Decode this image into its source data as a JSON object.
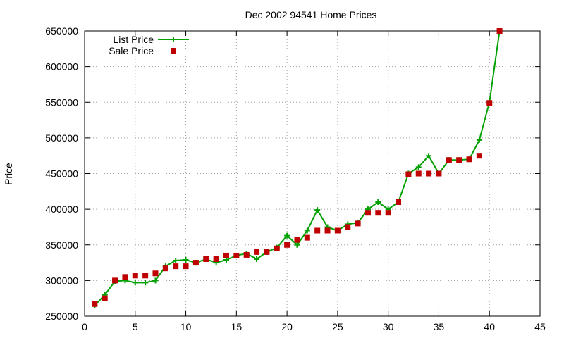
{
  "chart_data": {
    "type": "line",
    "title": "Dec 2002 94541 Home Prices",
    "xlabel": "",
    "ylabel": "Price",
    "xlim": [
      0,
      45
    ],
    "ylim": [
      250000,
      650000
    ],
    "xticks": [
      "0",
      "5",
      "10",
      "15",
      "20",
      "25",
      "30",
      "35",
      "40",
      "45"
    ],
    "yticks": [
      "250000",
      "300000",
      "350000",
      "400000",
      "450000",
      "500000",
      "550000",
      "600000",
      "650000"
    ],
    "grid": true,
    "legend_position": "top-left",
    "series": [
      {
        "name": "List Price",
        "style": "line-with-plus-markers",
        "color": "#00a000",
        "x": [
          1,
          2,
          3,
          4,
          5,
          6,
          7,
          8,
          9,
          10,
          11,
          12,
          13,
          14,
          15,
          16,
          17,
          18,
          19,
          20,
          21,
          22,
          23,
          24,
          25,
          26,
          27,
          28,
          29,
          30,
          31,
          32,
          33,
          34,
          35,
          36,
          37,
          38,
          39,
          40,
          41
        ],
        "y": [
          265000,
          280000,
          299000,
          300000,
          297000,
          297000,
          300000,
          320000,
          328000,
          329000,
          325000,
          330000,
          325000,
          329000,
          335000,
          338000,
          330000,
          340000,
          346000,
          363000,
          350000,
          370000,
          399000,
          375000,
          370000,
          379000,
          381000,
          400000,
          410000,
          400000,
          410000,
          450000,
          459000,
          475000,
          450000,
          469000,
          469000,
          470000,
          497000,
          550000,
          650000
        ]
      },
      {
        "name": "Sale Price",
        "style": "square-markers",
        "color": "#c00000",
        "x": [
          1,
          2,
          3,
          4,
          5,
          6,
          7,
          8,
          9,
          10,
          11,
          12,
          13,
          14,
          15,
          16,
          17,
          18,
          19,
          20,
          21,
          22,
          23,
          24,
          25,
          26,
          27,
          28,
          29,
          30,
          31,
          32,
          33,
          34,
          35,
          36,
          37,
          38,
          39,
          40,
          41
        ],
        "y": [
          267000,
          275000,
          300000,
          305000,
          307000,
          307000,
          310000,
          317000,
          320000,
          320000,
          325000,
          330000,
          330000,
          335000,
          335000,
          336000,
          340000,
          340000,
          345000,
          350000,
          357000,
          360000,
          370000,
          370000,
          370000,
          375000,
          380000,
          395000,
          395000,
          395000,
          410000,
          449000,
          450000,
          450000,
          450000,
          469000,
          469000,
          470000,
          475000,
          549000,
          650000
        ]
      }
    ]
  }
}
